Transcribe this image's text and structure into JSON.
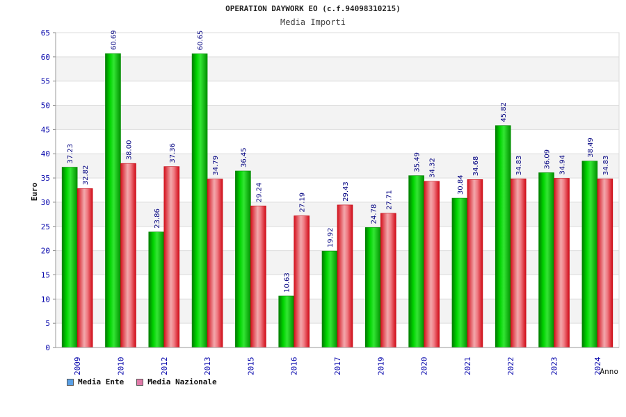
{
  "chart_data": {
    "type": "bar",
    "title": "OPERATION DAYWORK EO (c.f.94098310215)",
    "subtitle": "Media Importi",
    "xlabel": "Anno",
    "ylabel": "Euro",
    "ylim": [
      0,
      65
    ],
    "yticks": [
      0,
      5,
      10,
      15,
      20,
      25,
      30,
      35,
      40,
      45,
      50,
      55,
      60,
      65
    ],
    "categories": [
      "2009",
      "2010",
      "2012",
      "2013",
      "2015",
      "2016",
      "2017",
      "2019",
      "2020",
      "2021",
      "2022",
      "2023",
      "2024"
    ],
    "series": [
      {
        "name": "Media Ente",
        "values": [
          37.23,
          60.69,
          23.86,
          60.65,
          36.45,
          10.63,
          19.92,
          24.78,
          35.49,
          30.84,
          45.82,
          36.09,
          38.49
        ],
        "labels": [
          "37.23",
          "60.69",
          "23.86",
          "60.65",
          "36.45",
          "10.63",
          "19.92",
          "24.78",
          "35.49",
          "30.84",
          "45.82",
          "36.09",
          "38.49"
        ],
        "color": "#00b000",
        "legend_color": "#5aa0e6"
      },
      {
        "name": "Media Nazionale",
        "values": [
          32.82,
          38.0,
          37.36,
          34.79,
          29.24,
          27.19,
          29.43,
          27.71,
          34.32,
          34.68,
          34.83,
          34.94,
          34.83
        ],
        "labels": [
          "32.82",
          "38.00",
          "37.36",
          "34.79",
          "29.24",
          "27.19",
          "29.43",
          "27.71",
          "34.32",
          "34.68",
          "34.83",
          "34.94",
          "34.83"
        ],
        "color": "#e8202a",
        "legend_color": "#e07aa8"
      }
    ],
    "grid": true,
    "legend_position": "bottom-left"
  }
}
